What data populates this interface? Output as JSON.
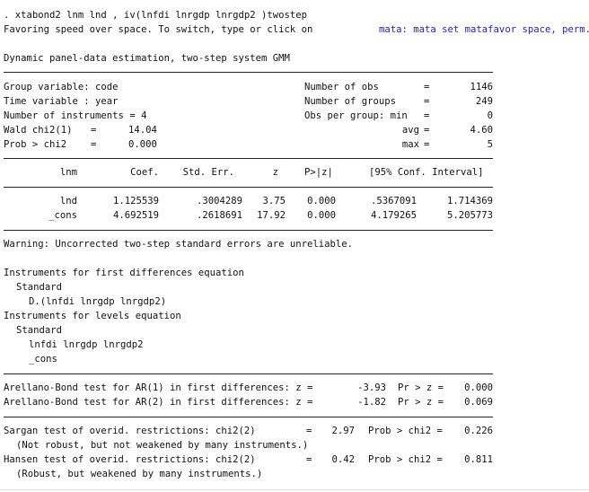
{
  "command": ". xtabond2 lnm lnd , iv(lnfdi lnrgdp lnrgdp2 )twostep",
  "note": {
    "text": "Favoring speed over space. To switch, type or click on",
    "link": "mata: mata set matafavor space, perm."
  },
  "title": "Dynamic panel-data estimation, two-step system GMM",
  "summary_left": [
    {
      "label": "Group variable: code"
    },
    {
      "label": "Time variable : year"
    },
    {
      "label": "Number of instruments = 4"
    },
    {
      "label": "Wald chi2(1)",
      "eq": "=",
      "value": "14.04"
    },
    {
      "label": "Prob > chi2",
      "eq": "=",
      "value": "0.000"
    }
  ],
  "summary_right": [
    {
      "label": "Number of obs",
      "eq": "=",
      "value": "1146"
    },
    {
      "label": "Number of groups",
      "eq": "=",
      "value": "249"
    },
    {
      "label": "Obs per group: min",
      "eq": "=",
      "value": "0"
    },
    {
      "label": "avg",
      "eq": "=",
      "value": "4.60"
    },
    {
      "label": "max",
      "eq": "=",
      "value": "5"
    }
  ],
  "table": {
    "columns": [
      "lnm",
      "Coef.",
      "Std. Err.",
      "z",
      "P>|z|",
      "[95% Conf. Interval]"
    ],
    "rows": [
      [
        "lnd",
        "1.125539",
        ".3004289",
        "3.75",
        "0.000",
        ".5367091",
        "1.714369"
      ],
      [
        "_cons",
        "4.692519",
        ".2618691",
        "17.92",
        "0.000",
        "4.179265",
        "5.205773"
      ]
    ]
  },
  "warning": "Warning: Uncorrected two-step standard errors are unreliable.",
  "instruments": [
    {
      "text": "Instruments for first differences equation",
      "level": 0
    },
    {
      "text": "Standard",
      "level": 1
    },
    {
      "text": "D.(lnfdi lnrgdp lnrgdp2)",
      "level": 2
    },
    {
      "text": "Instruments for levels equation",
      "level": 0
    },
    {
      "text": "Standard",
      "level": 1
    },
    {
      "text": "lnfdi lnrgdp lnrgdp2",
      "level": 2
    },
    {
      "text": "_cons",
      "level": 2
    }
  ],
  "ar_tests": [
    {
      "label": "Arellano-Bond test for AR(1) in first differences: z =",
      "stat": "-3.93",
      "p_label": "Pr > z =",
      "p": "0.000"
    },
    {
      "label": "Arellano-Bond test for AR(2) in first differences: z =",
      "stat": "-1.82",
      "p_label": "Pr > z =",
      "p": "0.069"
    }
  ],
  "overid_tests": [
    {
      "label": "Sargan test of overid. restrictions: chi2(2)",
      "eq": "=",
      "stat": "2.97",
      "p_label": "Prob > chi2 =",
      "p": "0.226",
      "note": "(Not robust, but not weakened by many instruments.)"
    },
    {
      "label": "Hansen test of overid. restrictions: chi2(2)",
      "eq": "=",
      "stat": "0.42",
      "p_label": "Prob > chi2 =",
      "p": "0.811",
      "note": "(Robust, but weakened by many instruments.)"
    }
  ]
}
